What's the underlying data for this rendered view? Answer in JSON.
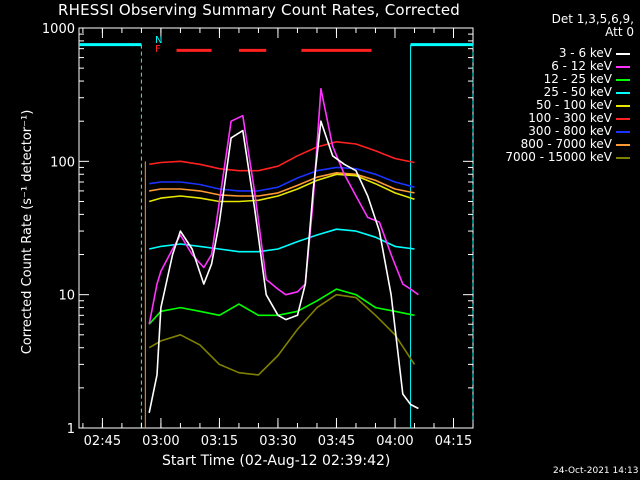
{
  "colors": {
    "3-6": "#ffffff",
    "6-12": "#ff33ff",
    "12-25": "#00ff00",
    "25-50": "#00ffff",
    "50-100": "#e6e600",
    "100-300": "#ff2020",
    "300-800": "#1a33ff",
    "800-7000": "#ff9933",
    "7000-15000": "#808000",
    "attenuator": "#00ffff",
    "flag_F": "#ff2020"
  },
  "legend": {
    "header_line1": "Det 1,3,5,6,9,",
    "header_line2": "Att 0"
  },
  "markers": {
    "N": "N",
    "F": "F"
  },
  "footer": {
    "date": "24-Oct-2021 14:13"
  },
  "chart_data": {
    "type": "line",
    "title": "RHESSI Observing Summary Count Rates, Corrected",
    "xlabel": "Start Time (02-Aug-12 02:39:42)",
    "ylabel": "Corrected Count Rate (s⁻¹ detector⁻¹)",
    "y_scale": "log",
    "ylim": [
      1,
      1000
    ],
    "xlim": [
      "02:39",
      "04:20"
    ],
    "x_ticks": [
      "02:45",
      "03:00",
      "03:15",
      "03:30",
      "03:45",
      "04:00",
      "04:15"
    ],
    "y_ticks": [
      "1",
      "10",
      "100",
      "1000"
    ],
    "data_window": [
      "02:56",
      "04:06"
    ],
    "series": [
      {
        "name": "3 - 6 keV",
        "color": "#ffffff",
        "x": [
          "02:57",
          "02:59",
          "03:00",
          "03:03",
          "03:05",
          "03:08",
          "03:11",
          "03:13",
          "03:15",
          "03:18",
          "03:21",
          "03:24",
          "03:27",
          "03:30",
          "03:32",
          "03:35",
          "03:37",
          "03:39",
          "03:41",
          "03:44",
          "03:47",
          "03:50",
          "03:53",
          "03:56",
          "03:59",
          "04:02",
          "04:04",
          "04:06"
        ],
        "y": [
          1.3,
          2.5,
          8,
          20,
          30,
          22,
          12,
          17,
          35,
          150,
          170,
          45,
          10,
          7,
          6.5,
          7,
          12,
          60,
          200,
          110,
          95,
          85,
          55,
          30,
          10,
          1.8,
          1.5,
          1.4
        ]
      },
      {
        "name": "6 - 12 keV",
        "color": "#ff33ff",
        "x": [
          "02:57",
          "02:59",
          "03:00",
          "03:03",
          "03:05",
          "03:08",
          "03:11",
          "03:13",
          "03:15",
          "03:18",
          "03:21",
          "03:24",
          "03:27",
          "03:30",
          "03:32",
          "03:35",
          "03:37",
          "03:39",
          "03:41",
          "03:44",
          "03:47",
          "03:50",
          "03:53",
          "03:56",
          "03:59",
          "04:02",
          "04:04",
          "04:06"
        ],
        "y": [
          6,
          12,
          15,
          22,
          28,
          20,
          16,
          20,
          50,
          200,
          220,
          60,
          13,
          11,
          10,
          10.5,
          12,
          50,
          350,
          130,
          80,
          55,
          38,
          35,
          20,
          12,
          11,
          10
        ]
      },
      {
        "name": "12 - 25 keV",
        "color": "#00ff00",
        "x": [
          "02:57",
          "03:00",
          "03:05",
          "03:10",
          "03:15",
          "03:20",
          "03:25",
          "03:30",
          "03:35",
          "03:40",
          "03:45",
          "03:50",
          "03:55",
          "04:00",
          "04:05"
        ],
        "y": [
          6,
          7.5,
          8,
          7.5,
          7,
          8.5,
          7,
          7,
          7.5,
          9,
          11,
          10,
          8,
          7.5,
          7
        ]
      },
      {
        "name": "25 - 50 keV",
        "color": "#00ffff",
        "x": [
          "02:57",
          "03:00",
          "03:05",
          "03:10",
          "03:15",
          "03:20",
          "03:25",
          "03:30",
          "03:35",
          "03:40",
          "03:45",
          "03:50",
          "03:55",
          "04:00",
          "04:05"
        ],
        "y": [
          22,
          23,
          24,
          23,
          22,
          21,
          21,
          22,
          25,
          28,
          31,
          30,
          27,
          23,
          22
        ]
      },
      {
        "name": "50 - 100 keV",
        "color": "#e6e600",
        "x": [
          "02:57",
          "03:00",
          "03:05",
          "03:10",
          "03:15",
          "03:20",
          "03:25",
          "03:30",
          "03:35",
          "03:40",
          "03:45",
          "03:50",
          "03:55",
          "04:00",
          "04:05"
        ],
        "y": [
          50,
          53,
          55,
          53,
          50,
          50,
          51,
          55,
          62,
          72,
          80,
          78,
          68,
          58,
          52
        ]
      },
      {
        "name": "100 - 300 keV",
        "color": "#ff2020",
        "x": [
          "02:57",
          "03:00",
          "03:05",
          "03:10",
          "03:15",
          "03:20",
          "03:25",
          "03:30",
          "03:35",
          "03:40",
          "03:45",
          "03:50",
          "03:55",
          "04:00",
          "04:05"
        ],
        "y": [
          95,
          98,
          100,
          95,
          88,
          85,
          85,
          92,
          110,
          128,
          140,
          135,
          120,
          105,
          98
        ]
      },
      {
        "name": "300 - 800 keV",
        "color": "#1a33ff",
        "x": [
          "02:57",
          "03:00",
          "03:05",
          "03:10",
          "03:15",
          "03:20",
          "03:25",
          "03:30",
          "03:35",
          "03:40",
          "03:45",
          "03:50",
          "03:55",
          "04:00",
          "04:05"
        ],
        "y": [
          68,
          70,
          70,
          67,
          62,
          60,
          60,
          64,
          75,
          85,
          90,
          88,
          80,
          70,
          64
        ]
      },
      {
        "name": "800 - 7000 keV",
        "color": "#ff9933",
        "x": [
          "02:57",
          "03:00",
          "03:05",
          "03:10",
          "03:15",
          "03:20",
          "03:25",
          "03:30",
          "03:35",
          "03:40",
          "03:45",
          "03:50",
          "03:55",
          "04:00",
          "04:05"
        ],
        "y": [
          60,
          62,
          62,
          60,
          56,
          55,
          55,
          58,
          66,
          76,
          82,
          80,
          72,
          62,
          58
        ]
      },
      {
        "name": "7000 - 15000 keV",
        "color": "#808000",
        "x": [
          "02:57",
          "03:00",
          "03:05",
          "03:10",
          "03:15",
          "03:20",
          "03:25",
          "03:30",
          "03:35",
          "03:40",
          "03:45",
          "03:50",
          "03:55",
          "04:00",
          "04:05"
        ],
        "y": [
          4,
          4.5,
          5,
          4.2,
          3,
          2.6,
          2.5,
          3.5,
          5.5,
          8,
          10,
          9.5,
          7,
          5,
          3
        ]
      }
    ],
    "annotations": [
      {
        "label": "attenuator",
        "color": "#00ffff",
        "segments": [
          [
            "02:39",
            "02:55"
          ],
          [
            "04:04",
            "04:20"
          ]
        ],
        "y": 750
      },
      {
        "label": "flag",
        "color": "#ff2020",
        "segments": [
          [
            "03:04",
            "03:13"
          ],
          [
            "03:20",
            "03:27"
          ],
          [
            "03:36",
            "03:54"
          ]
        ],
        "y": 680
      }
    ]
  }
}
